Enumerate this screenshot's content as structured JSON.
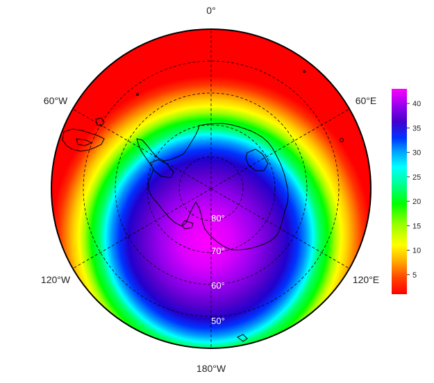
{
  "map": {
    "projection": "south-polar-stereographic",
    "center": "South Pole",
    "boundary_latitude": 40,
    "graticule_style": "dashed",
    "longitude_labels": [
      "0°",
      "60°E",
      "120°E",
      "180°W",
      "120°W",
      "60°W"
    ],
    "latitude_labels": [
      "80°",
      "70°",
      "60°",
      "50°"
    ],
    "field_description_bands": [
      {
        "latitude": 90,
        "value": 43
      },
      {
        "latitude": 80,
        "value": 41
      },
      {
        "latitude": 75,
        "value": 38
      },
      {
        "latitude": 70,
        "value": 35
      },
      {
        "latitude": 66,
        "value": 32
      },
      {
        "latitude": 63,
        "value": 28
      },
      {
        "latitude": 60,
        "value": 22
      },
      {
        "latitude": 56,
        "value": 17
      },
      {
        "latitude": 52,
        "value": 11
      },
      {
        "latitude": 48,
        "value": 6
      },
      {
        "latitude": 44,
        "value": 3
      },
      {
        "latitude": 40,
        "value": 1
      }
    ]
  },
  "colorbar": {
    "min": 1,
    "max": 43,
    "ticks": [
      "5",
      "10",
      "15",
      "20",
      "25",
      "30",
      "35",
      "40"
    ],
    "colors": [
      "#ff0000",
      "#ff4400",
      "#ff8800",
      "#ffcc00",
      "#ffff00",
      "#99ff00",
      "#00ff00",
      "#00ff99",
      "#00ffff",
      "#0099ff",
      "#0033ff",
      "#3300cc",
      "#6600dd",
      "#9900ee",
      "#cc00ff",
      "#ff00ff"
    ]
  }
}
